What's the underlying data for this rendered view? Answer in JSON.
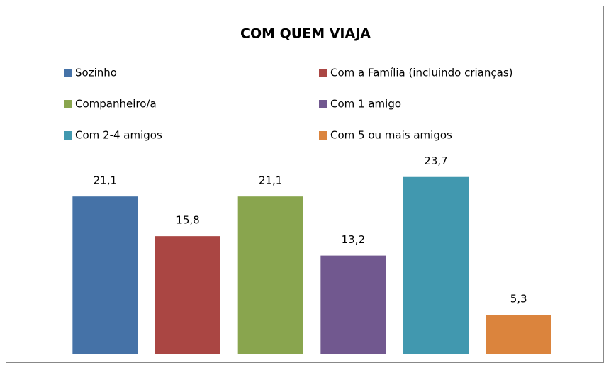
{
  "chart_data": {
    "type": "bar",
    "title": "COM QUEM VIAJA",
    "series": [
      {
        "name": "Sozinho",
        "color": "#4572a7",
        "values": [
          21.1
        ],
        "value_labels": [
          "21,1"
        ]
      },
      {
        "name": "Com a Família  (incluindo crianças)",
        "color": "#aa4643",
        "values": [
          15.8
        ],
        "value_labels": [
          "15,8"
        ]
      },
      {
        "name": "Companheiro/a",
        "color": "#89a54e",
        "values": [
          21.1
        ],
        "value_labels": [
          "21,1"
        ]
      },
      {
        "name": "Com 1 amigo",
        "color": "#71588f",
        "values": [
          13.2
        ],
        "value_labels": [
          "13,2"
        ]
      },
      {
        "name": "Com 2-4 amigos",
        "color": "#4198af",
        "values": [
          23.7
        ],
        "value_labels": [
          "23,7"
        ]
      },
      {
        "name": "Com 5 ou mais amigos",
        "color": "#db843d",
        "values": [
          5.3
        ],
        "value_labels": [
          "5,3"
        ]
      }
    ],
    "ylim": [
      0,
      25
    ],
    "legend": "top"
  }
}
